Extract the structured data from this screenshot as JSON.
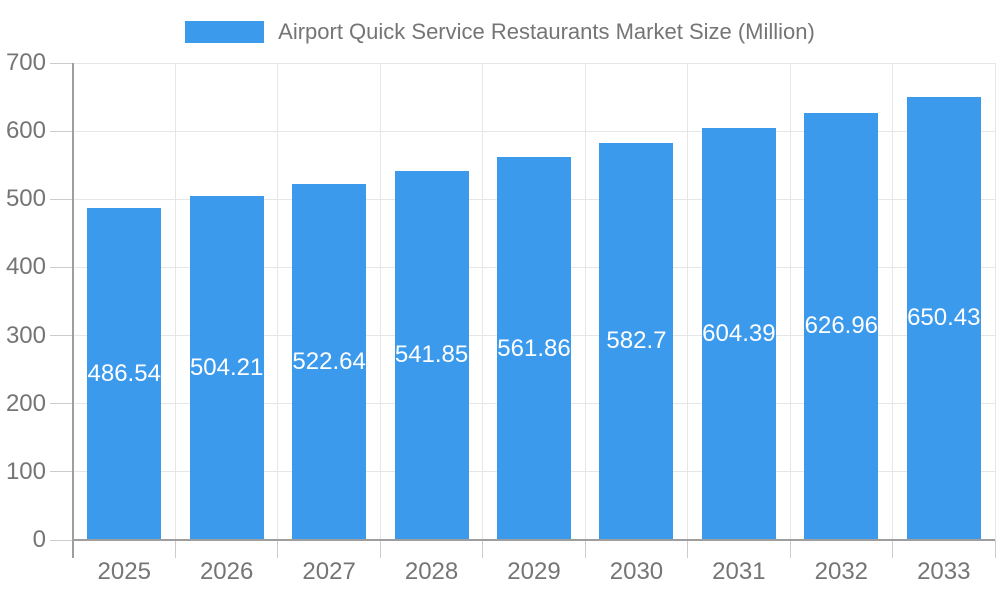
{
  "chart_data": {
    "type": "bar",
    "categories": [
      "2025",
      "2026",
      "2027",
      "2028",
      "2029",
      "2030",
      "2031",
      "2032",
      "2033"
    ],
    "series": [
      {
        "name": "Airport Quick Service Restaurants Market Size (Million)",
        "values": [
          486.54,
          504.21,
          522.64,
          541.85,
          561.86,
          582.7,
          604.39,
          626.96,
          650.43
        ]
      }
    ],
    "value_labels": [
      "486.54",
      "504.21",
      "522.64",
      "541.85",
      "561.86",
      "582.7",
      "604.39",
      "626.96",
      "650.43"
    ],
    "title": "Airport Quick Service Restaurants Market Size (Million)",
    "xlabel": "",
    "ylabel": "",
    "ylim": [
      0,
      700
    ],
    "yticks": [
      0,
      100,
      200,
      300,
      400,
      500,
      600,
      700
    ],
    "grid": "on",
    "legend_position": "top-center",
    "colors": {
      "bar": "#3B9AEC",
      "value_label_text": "#FFFFFF",
      "axis_line": "#9E9E9E",
      "gridline": "#E6E6E6",
      "axis_tick": "#CCCCCC",
      "label_text": "#757575",
      "background": "#FFFFFF"
    }
  }
}
